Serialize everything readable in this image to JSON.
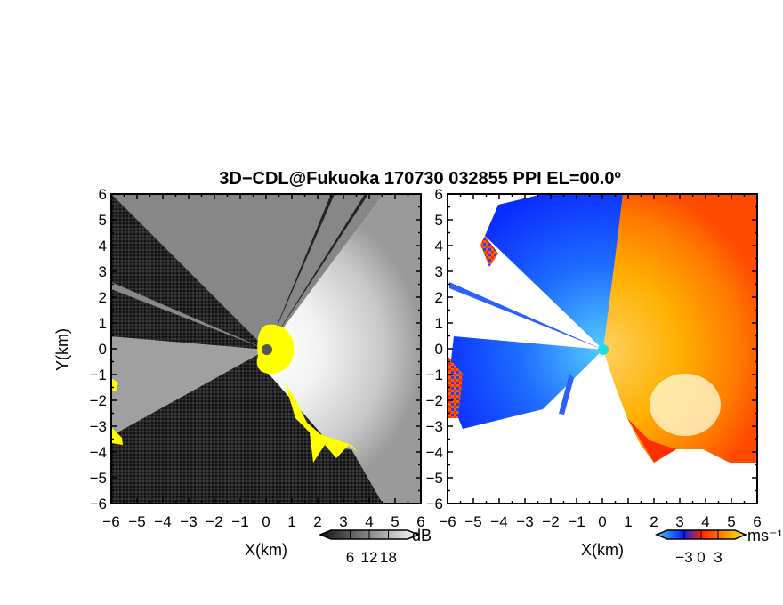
{
  "chart_data": [
    {
      "type": "heatmap",
      "title": "3D−CDL@Fukuoka 170730 032855 PPI EL=00.0º",
      "xlabel": "X(km)",
      "ylabel": "Y(km)",
      "xlim": [
        -6,
        6
      ],
      "ylim": [
        -6,
        6
      ],
      "x_ticks": [
        -6,
        -5,
        -4,
        -3,
        -2,
        -1,
        0,
        1,
        2,
        3,
        4,
        5,
        6
      ],
      "y_ticks": [
        -6,
        -5,
        -4,
        -3,
        -2,
        -1,
        0,
        1,
        2,
        3,
        4,
        5,
        6
      ],
      "x_tick_labels": [
        "−6",
        "−5",
        "−4",
        "−3",
        "−2",
        "−1",
        "0",
        "1",
        "2",
        "3",
        "4",
        "5",
        "6"
      ],
      "y_tick_labels": [
        "−6",
        "−5",
        "−4",
        "−3",
        "−2",
        "−1",
        "0",
        "1",
        "2",
        "3",
        "4",
        "5",
        "6"
      ],
      "field": "signal-to-noise ratio (grayscale)",
      "colorbar": {
        "unit": "dB",
        "ticks": [
          6,
          12,
          18
        ],
        "tick_labels": [
          "6",
          "12",
          "18"
        ]
      },
      "colors": {
        "low": "#1a1a1a",
        "high": "#ffffff",
        "flag": "#ffff00",
        "center": "#555555"
      }
    },
    {
      "type": "heatmap",
      "xlabel": "X(km)",
      "xlim": [
        -6,
        6
      ],
      "ylim": [
        -6,
        6
      ],
      "x_ticks": [
        -6,
        -5,
        -4,
        -3,
        -2,
        -1,
        0,
        1,
        2,
        3,
        4,
        5,
        6
      ],
      "y_ticks": [
        -6,
        -5,
        -4,
        -3,
        -2,
        -1,
        0,
        1,
        2,
        3,
        4,
        5,
        6
      ],
      "x_tick_labels": [
        "−6",
        "−5",
        "−4",
        "−3",
        "−2",
        "−1",
        "0",
        "1",
        "2",
        "3",
        "4",
        "5",
        "6"
      ],
      "y_tick_labels": [
        "−6",
        "−5",
        "−4",
        "−3",
        "−2",
        "−1",
        "0",
        "1",
        "2",
        "3",
        "4",
        "5",
        "6"
      ],
      "field": "radial velocity",
      "colorbar": {
        "unit": "ms⁻¹",
        "ticks": [
          -3,
          0,
          3
        ],
        "tick_labels": [
          "−3",
          "0",
          "3"
        ]
      },
      "colors": {
        "neg_strong": "#0022ff",
        "neg_weak": "#44ccff",
        "zero": "#ff3300",
        "pos": "#ff8800",
        "pos_strong": "#ffee00",
        "center": "#22dddd"
      }
    }
  ]
}
